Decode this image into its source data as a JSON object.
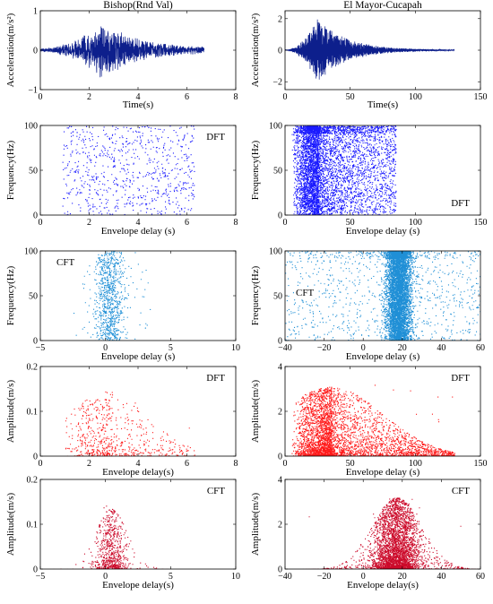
{
  "colors": {
    "accel": "#0d1f8c",
    "freq_dft": "#1a1aff",
    "freq_cft": "#1f8fd6",
    "amp_dft": "#ff1a1a",
    "amp_cft": "#cc0a2a"
  },
  "chart_data": [
    {
      "id": "bishop_accel",
      "type": "line",
      "title": "Bishop(Rnd Val)",
      "xlabel": "Time(s)",
      "ylabel": "Acceleration(m/s²)",
      "xlim": [
        0,
        8
      ],
      "ylim": [
        -1,
        1
      ],
      "xticks": [
        0,
        2,
        4,
        6,
        8
      ],
      "yticks": [
        -1,
        0,
        1
      ],
      "color_key": "accel",
      "signal": {
        "duration": 6.7,
        "peak_time": 2.5,
        "peak_amp": 0.75,
        "rise": 0.9,
        "decay": 1.5,
        "floor": 0.05,
        "n": 900,
        "seed": 11
      }
    },
    {
      "id": "elmayor_accel",
      "type": "line",
      "title": "El Mayor-Cucapah",
      "xlabel": "Time(s)",
      "ylabel": "Acceleration(m/s²)",
      "xlim": [
        0,
        150
      ],
      "ylim": [
        -2.5,
        2.5
      ],
      "xticks": [
        0,
        50,
        100,
        150
      ],
      "yticks": [
        -2,
        0,
        2
      ],
      "color_key": "accel",
      "signal": {
        "duration": 130,
        "peak_time": 25,
        "peak_amp": 2.1,
        "rise": 4,
        "decay": 22,
        "floor": 0.02,
        "n": 2400,
        "seed": 23
      }
    },
    {
      "id": "bishop_freq_dft",
      "type": "scatter",
      "annotation": "DFT",
      "xlabel": "Envelope delay (s)",
      "ylabel": "Frequency(Hz)",
      "xlim": [
        0,
        8
      ],
      "ylim": [
        0,
        100
      ],
      "xticks": [
        0,
        2,
        4,
        6,
        8
      ],
      "yticks": [
        0,
        50,
        100
      ],
      "color_key": "freq_dft",
      "cloud": {
        "n": 750,
        "x_min": 0.9,
        "x_max": 6.3,
        "x_mode": "uniform",
        "y_min": 0,
        "y_max": 100,
        "y_mode": "uniform",
        "seed": 31
      }
    },
    {
      "id": "elmayor_freq_dft",
      "type": "scatter",
      "annotation": "DFT",
      "xlabel": "Envelope delay (s)",
      "ylabel": "Frequency(Hz)",
      "xlim": [
        0,
        150
      ],
      "ylim": [
        0,
        100
      ],
      "xticks": [
        0,
        50,
        100,
        150
      ],
      "yticks": [
        0,
        50,
        100
      ],
      "color_key": "freq_dft",
      "cloud": {
        "n": 5500,
        "x_min": 5,
        "x_max": 85,
        "x_mode": "skew",
        "x_peak": 25,
        "y_min": 0,
        "y_max": 100,
        "y_mode": "uniform",
        "top_band": true,
        "seed": 37
      }
    },
    {
      "id": "bishop_freq_cft",
      "type": "scatter",
      "annotation": "CFT",
      "xlabel": "Envelope delay (s)",
      "ylabel": "Frequency(Hz)",
      "xlim": [
        -5,
        10
      ],
      "ylim": [
        0,
        100
      ],
      "xticks": [
        -5,
        0,
        5,
        10
      ],
      "yticks": [
        0,
        50,
        100
      ],
      "color_key": "freq_cft",
      "cloud": {
        "n": 900,
        "x_mode": "normal",
        "x_center": 0.3,
        "x_sigma": 0.55,
        "x_outliers": 0.08,
        "x_min": -2.5,
        "x_max": 3.5,
        "y_min": 0,
        "y_max": 100,
        "y_mode": "uniform",
        "seed": 41
      }
    },
    {
      "id": "elmayor_freq_cft",
      "type": "scatter",
      "annotation": "CFT",
      "xlabel": "Envelope delay (s)",
      "ylabel": "Frequency(Hz)",
      "xlim": [
        -40,
        60
      ],
      "ylim": [
        0,
        100
      ],
      "xticks": [
        -40,
        -20,
        0,
        20,
        40,
        60
      ],
      "yticks": [
        0,
        50,
        100
      ],
      "color_key": "freq_cft",
      "cloud": {
        "n": 6500,
        "x_mode": "normal",
        "x_center": 18,
        "x_sigma": 3.2,
        "x_outliers": 0.15,
        "x_min": -40,
        "x_max": 60,
        "y_min": 0,
        "y_max": 100,
        "y_mode": "uniform",
        "top_band": true,
        "seed": 43
      }
    },
    {
      "id": "bishop_amp_dft",
      "type": "scatter",
      "annotation": "DFT",
      "xlabel": "Envelope delay(s)",
      "ylabel": "Amplitude(m/s)",
      "xlim": [
        0,
        8
      ],
      "ylim": [
        0,
        0.2
      ],
      "xticks": [
        0,
        2,
        4,
        6,
        8
      ],
      "yticks": [
        0,
        0.1,
        0.2
      ],
      "color_key": "amp_dft",
      "cloud": {
        "n": 700,
        "x_min": 0.9,
        "x_max": 6.3,
        "x_mode": "skew",
        "x_peak": 2.7,
        "y_mode": "envelope",
        "y_max": 0.145,
        "y_ceiling": 0.18,
        "seed": 53
      }
    },
    {
      "id": "elmayor_amp_dft",
      "type": "scatter",
      "annotation": "DFT",
      "xlabel": "Envelope delay (s)",
      "ylabel": "Amplitude(m/s)",
      "xlim": [
        0,
        150
      ],
      "ylim": [
        0,
        4
      ],
      "xticks": [
        0,
        50,
        100,
        150
      ],
      "yticks": [
        0,
        2,
        4
      ],
      "color_key": "amp_dft",
      "cloud": {
        "n": 4500,
        "x_min": 5,
        "x_max": 130,
        "x_mode": "skew",
        "x_peak": 35,
        "y_mode": "envelope",
        "y_max": 3.1,
        "y_ceiling": 3.3,
        "seed": 59
      }
    },
    {
      "id": "bishop_amp_cft",
      "type": "scatter",
      "annotation": "CFT",
      "xlabel": "Envelope delay(s)",
      "ylabel": "Amplitude(m/s)",
      "xlim": [
        -5,
        10
      ],
      "ylim": [
        0,
        0.2
      ],
      "xticks": [
        -5,
        0,
        5,
        10
      ],
      "yticks": [
        0,
        0.1,
        0.2
      ],
      "color_key": "amp_cft",
      "cloud": {
        "n": 800,
        "x_mode": "normal",
        "x_center": 0.4,
        "x_sigma": 0.6,
        "x_outliers": 0.1,
        "x_min": -4.5,
        "x_max": 5.5,
        "y_mode": "envelope",
        "y_max": 0.135,
        "y_ceiling": 0.18,
        "seed": 61
      }
    },
    {
      "id": "elmayor_amp_cft",
      "type": "scatter",
      "annotation": "CFT",
      "xlabel": "Envelope delay(s)",
      "ylabel": "Amplitude(m/s)",
      "xlim": [
        -40,
        60
      ],
      "ylim": [
        0,
        4
      ],
      "xticks": [
        -40,
        -20,
        0,
        20,
        40,
        60
      ],
      "yticks": [
        0,
        2,
        4
      ],
      "color_key": "amp_cft",
      "cloud": {
        "n": 4200,
        "x_mode": "normal",
        "x_center": 17,
        "x_sigma": 6,
        "x_outliers": 0.12,
        "x_min": -40,
        "x_max": 60,
        "y_mode": "envelope",
        "y_max": 3.2,
        "y_ceiling": 3.3,
        "seed": 67
      }
    }
  ]
}
